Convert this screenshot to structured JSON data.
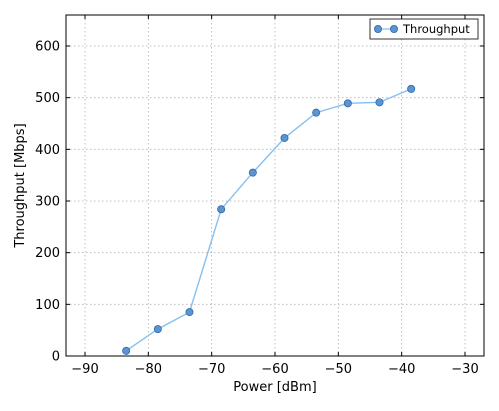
{
  "chart_data": {
    "type": "line",
    "title": "",
    "xlabel": "Power [dBm]",
    "ylabel": "Throughput [Mbps]",
    "xlim": [
      -93,
      -27
    ],
    "ylim": [
      0,
      660
    ],
    "xticks": [
      -90,
      -80,
      -70,
      -60,
      -50,
      -40,
      -30
    ],
    "yticks": [
      0,
      100,
      200,
      300,
      400,
      500,
      600
    ],
    "grid": true,
    "legend_position": "top-right",
    "series": [
      {
        "name": "Throughput",
        "color": "#87bff0",
        "marker_color": "#5b93d3",
        "x": [
          -83.5,
          -78.5,
          -73.5,
          -68.5,
          -63.5,
          -58.5,
          -53.5,
          -48.5,
          -43.5,
          -38.5
        ],
        "y": [
          10,
          52,
          85,
          284,
          355,
          422,
          471,
          489,
          491,
          517
        ]
      }
    ]
  }
}
